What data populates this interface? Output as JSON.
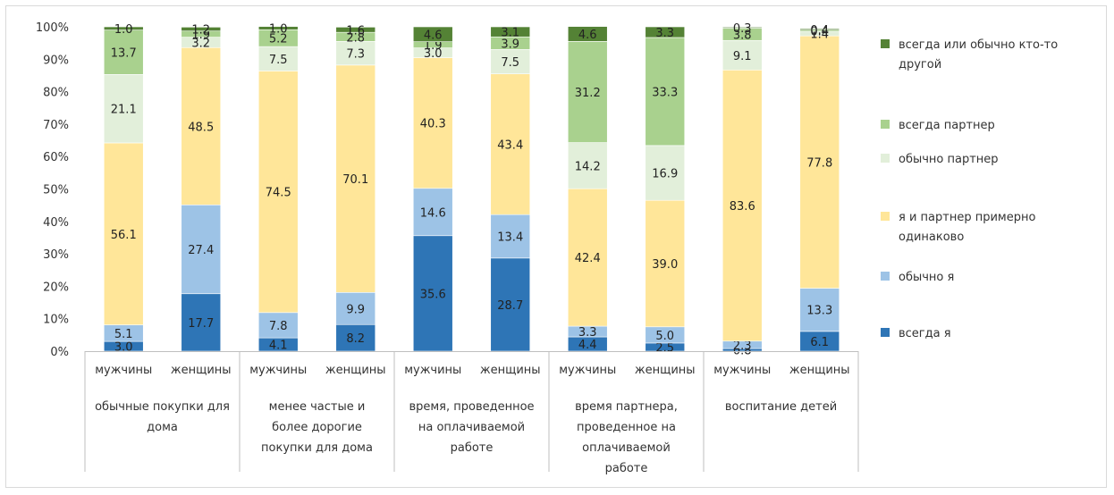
{
  "chart_data": {
    "type": "bar",
    "stacked": true,
    "percent_stacked": true,
    "ylim": [
      0,
      100
    ],
    "yticks": [
      "0%",
      "10%",
      "20%",
      "30%",
      "40%",
      "50%",
      "60%",
      "70%",
      "80%",
      "90%",
      "100%"
    ],
    "grid": false,
    "legend_position": "right",
    "groups": [
      {
        "label_lines": [
          "обычные покупки для",
          "дома"
        ]
      },
      {
        "label_lines": [
          "менее частые и",
          "более дорогие",
          "покупки для дома"
        ]
      },
      {
        "label_lines": [
          "время, проведенное",
          "на оплачиваемой",
          "работе"
        ]
      },
      {
        "label_lines": [
          "время партнера,",
          "проведенное на",
          "оплачиваемой",
          "работе"
        ]
      },
      {
        "label_lines": [
          "воспитание детей"
        ]
      }
    ],
    "bars": [
      {
        "group": 0,
        "sub": "мужчины"
      },
      {
        "group": 0,
        "sub": "женщины"
      },
      {
        "group": 1,
        "sub": "мужчины"
      },
      {
        "group": 1,
        "sub": "женщины"
      },
      {
        "group": 2,
        "sub": "мужчины"
      },
      {
        "group": 2,
        "sub": "женщины"
      },
      {
        "group": 3,
        "sub": "мужчины"
      },
      {
        "group": 3,
        "sub": "женщины"
      },
      {
        "group": 4,
        "sub": "мужчины"
      },
      {
        "group": 4,
        "sub": "женщины"
      }
    ],
    "series": [
      {
        "name": "всегда я",
        "color": "#2e75b6",
        "values": [
          3.0,
          17.7,
          4.1,
          8.2,
          35.6,
          28.7,
          4.4,
          2.5,
          0.8,
          6.1
        ]
      },
      {
        "name": "обычно я",
        "color": "#9dc3e6",
        "values": [
          5.1,
          27.4,
          7.8,
          9.9,
          14.6,
          13.4,
          3.3,
          5.0,
          2.3,
          13.3
        ]
      },
      {
        "name": "я и партнер примерно одинаково",
        "color": "#ffe699",
        "values": [
          56.1,
          48.5,
          74.5,
          70.1,
          40.3,
          43.4,
          42.4,
          39.0,
          83.6,
          77.8
        ]
      },
      {
        "name": "обычно партнер",
        "color": "#e2efda",
        "values": [
          21.1,
          3.2,
          7.5,
          7.3,
          3.0,
          7.5,
          14.2,
          16.9,
          9.1,
          1.4
        ]
      },
      {
        "name": "всегда партнер",
        "color": "#a9d18e",
        "values": [
          13.7,
          1.9,
          5.2,
          2.8,
          1.9,
          3.9,
          31.2,
          33.3,
          3.8,
          0.4
        ]
      },
      {
        "name": "всегда или обычно кто-то другой",
        "color": "#548235",
        "values": [
          1.0,
          1.2,
          1.0,
          1.6,
          4.6,
          3.1,
          4.6,
          3.3,
          0.3,
          0.4
        ]
      }
    ],
    "legend_lines": [
      [
        "всегда или обычно кто-то",
        "другой"
      ],
      [
        "всегда партнер"
      ],
      [
        "обычно партнер"
      ],
      [
        "я и партнер примерно",
        "одинаково"
      ],
      [
        "обычно я"
      ],
      [
        "всегда я"
      ]
    ]
  }
}
